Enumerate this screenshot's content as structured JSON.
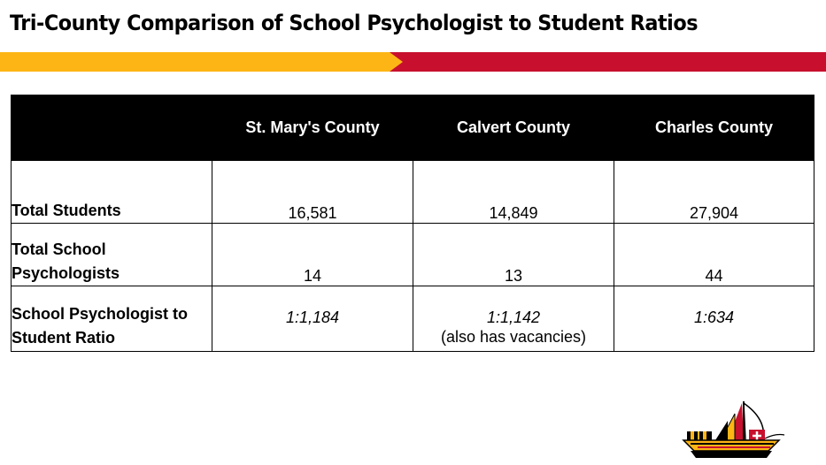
{
  "slide": {
    "title": "Tri-County Comparison of School Psychologist to Student Ratios"
  },
  "colors": {
    "banner_gold": "#FDB515",
    "banner_red": "#C8102E",
    "header_bg": "#000000",
    "header_text": "#FFFFFF"
  },
  "table": {
    "columns": [
      "",
      "St. Mary's County",
      "Calvert County",
      "Charles County"
    ],
    "rows": [
      {
        "label": "Total Students",
        "values": [
          "16,581",
          "14,849",
          "27,904"
        ]
      },
      {
        "label": "Total School Psychologists",
        "values": [
          "14",
          "13",
          "44"
        ]
      },
      {
        "label": "School Psychologist to Student Ratio",
        "values": [
          "1:1,184",
          "1:1,142",
          "1:634"
        ],
        "notes": [
          "",
          "(also has vacancies)",
          ""
        ]
      }
    ]
  },
  "logo": {
    "icon": "maryland-flag-ship-logo-icon"
  }
}
